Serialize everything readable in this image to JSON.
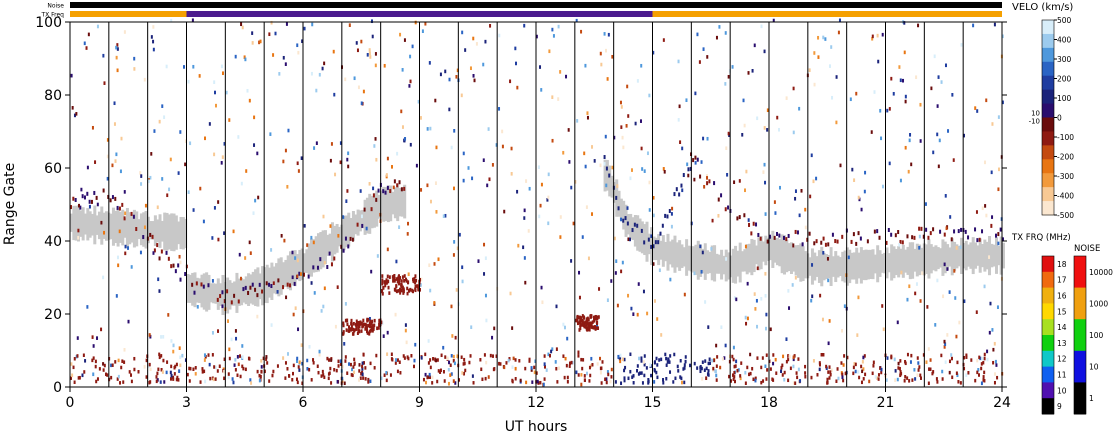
{
  "chart_data": {
    "type": "heatmap",
    "xlabel": "UT hours",
    "ylabel": "Range Gate",
    "xlim": [
      0,
      24
    ],
    "ylim": [
      0,
      100
    ],
    "x_ticks": [
      "0",
      "3",
      "6",
      "9",
      "12",
      "15",
      "18",
      "21",
      "24"
    ],
    "y_ticks": [
      "0",
      "20",
      "40",
      "60",
      "80",
      "100"
    ],
    "scan_boundaries_hours": [
      1,
      2,
      3,
      4,
      5,
      6,
      7,
      8,
      9,
      10,
      11,
      12,
      13,
      14,
      15,
      16,
      17,
      18,
      19,
      20,
      21,
      22,
      23
    ],
    "status_bars": {
      "noise_label": "Noise",
      "txfreq_label": "TX Freq",
      "tx_freq_segments": [
        {
          "from": 0,
          "to": 3,
          "color": "#f5a000"
        },
        {
          "from": 3,
          "to": 15,
          "color": "#4b1a8e"
        },
        {
          "from": 15,
          "to": 24,
          "color": "#f5a000"
        }
      ]
    },
    "velocity_scale": {
      "title": "VELO (km/s)",
      "tick_labels": [
        "500",
        "400",
        "300",
        "200",
        "100",
        "0",
        "-100",
        "-200",
        "-300",
        "-400",
        "-500"
      ],
      "small_labels": [
        "10",
        "-10"
      ],
      "colors": [
        "#fbe7d0",
        "#f8c994",
        "#f29a3c",
        "#e87512",
        "#c44a10",
        "#8e1a12",
        "#6a0c0c",
        "#2a0d6e",
        "#1b237a",
        "#1f3da0",
        "#2a64c4",
        "#4e98dc",
        "#9ccbee",
        "#d8eefa"
      ]
    },
    "txfreq_scale": {
      "title": "TX FRQ (MHz)",
      "tick_labels": [
        "18",
        "17",
        "16",
        "15",
        "14",
        "13",
        "12",
        "11",
        "10",
        "9"
      ],
      "colors": [
        "#e01010",
        "#f06a10",
        "#f0b010",
        "#ffd800",
        "#a8e020",
        "#10d010",
        "#10c8c8",
        "#1060f0",
        "#5010b0",
        "#000000"
      ]
    },
    "noise_scale": {
      "title": "NOISE",
      "tick_labels": [
        "10000",
        "1000",
        "100",
        "10",
        "1"
      ],
      "colors": [
        "#f01010",
        "#f0a010",
        "#10d010",
        "#1010e0",
        "#000000"
      ]
    },
    "ground_scatter_color": "#c8c8c8",
    "scatter_bands": [
      {
        "name": "ground-scatter",
        "points": [
          [
            0,
            45
          ],
          [
            1,
            44
          ],
          [
            2,
            43
          ],
          [
            3,
            42
          ],
          [
            3,
            27
          ],
          [
            4,
            25
          ],
          [
            5,
            28
          ],
          [
            6,
            34
          ],
          [
            7,
            42
          ],
          [
            8,
            50
          ],
          [
            13.8,
            58
          ],
          [
            14.3,
            45
          ],
          [
            15,
            38
          ],
          [
            16,
            35
          ],
          [
            17,
            33
          ],
          [
            18,
            38
          ],
          [
            19,
            33
          ],
          [
            20,
            33
          ],
          [
            21,
            34
          ],
          [
            22,
            35
          ],
          [
            23,
            36
          ],
          [
            24,
            36
          ]
        ]
      },
      {
        "name": "ionospheric-scatter",
        "points": [
          [
            0,
            48
          ],
          [
            1,
            50
          ],
          [
            3,
            26
          ],
          [
            4,
            22
          ],
          [
            6,
            28
          ],
          [
            7,
            35
          ],
          [
            8,
            52
          ],
          [
            13.7,
            60
          ],
          [
            14.2,
            45
          ],
          [
            15,
            35
          ],
          [
            16,
            60
          ],
          [
            17,
            45
          ],
          [
            18,
            38
          ],
          [
            24,
            40
          ]
        ]
      }
    ]
  }
}
